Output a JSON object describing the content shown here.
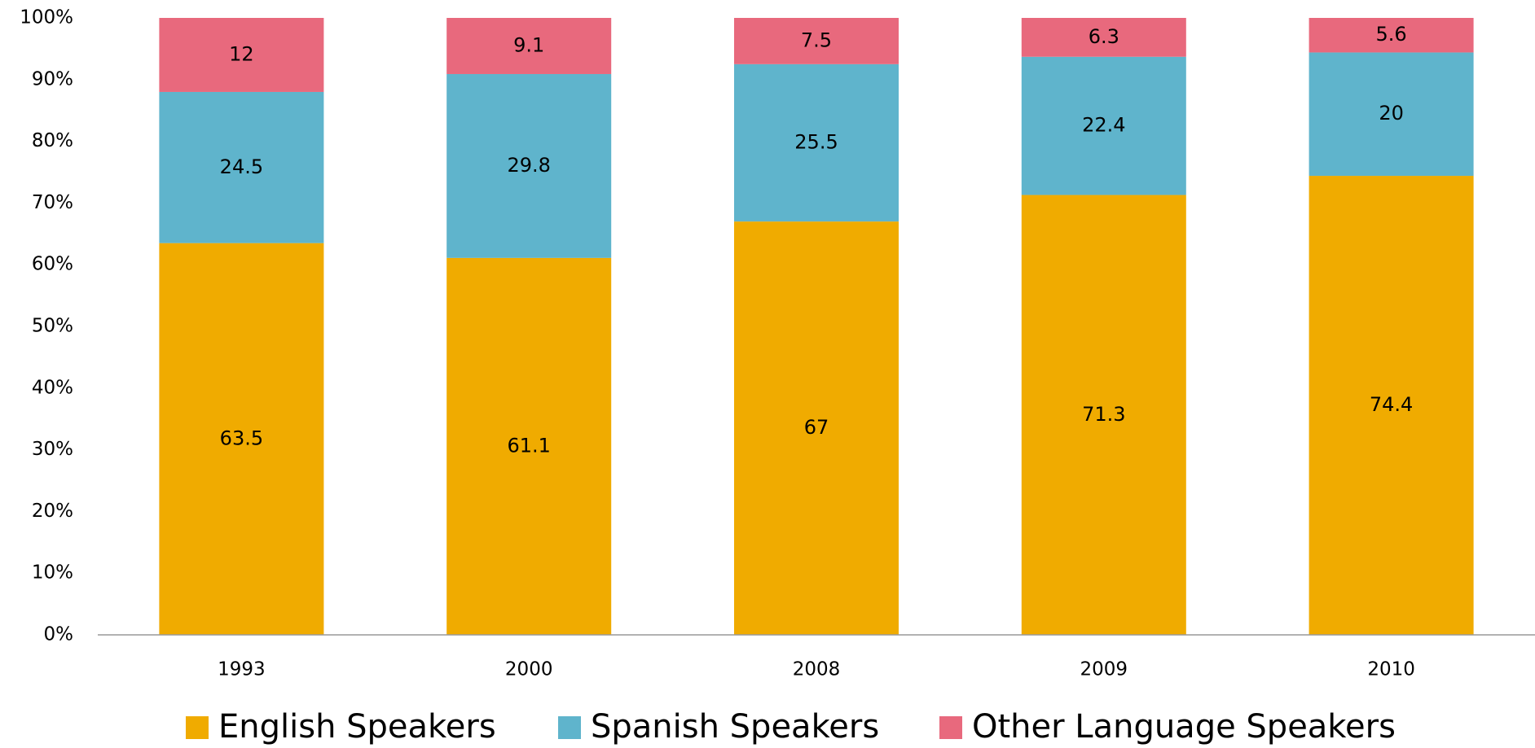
{
  "chart_data": {
    "type": "stacked_bar",
    "categories": [
      "1993",
      "2000",
      "2008",
      "2009",
      "2010"
    ],
    "series": [
      {
        "name": "English Speakers",
        "color": "#f0ab00",
        "values": [
          63.5,
          61.1,
          67,
          71.3,
          74.4
        ]
      },
      {
        "name": "Spanish Speakers",
        "color": "#5fb4cc",
        "values": [
          24.5,
          29.8,
          25.5,
          22.4,
          20
        ]
      },
      {
        "name": "Other Language Speakers",
        "color": "#e8697d",
        "values": [
          12,
          9.1,
          7.5,
          6.3,
          5.6
        ]
      }
    ],
    "ylim": [
      0,
      100
    ],
    "yticks": [
      {
        "value": 0,
        "label": "0%"
      },
      {
        "value": 10,
        "label": "10%"
      },
      {
        "value": 20,
        "label": "20%"
      },
      {
        "value": 30,
        "label": "30%"
      },
      {
        "value": 40,
        "label": "40%"
      },
      {
        "value": 50,
        "label": "50%"
      },
      {
        "value": 60,
        "label": "60%"
      },
      {
        "value": 70,
        "label": "70%"
      },
      {
        "value": 80,
        "label": "80%"
      },
      {
        "value": 90,
        "label": "90%"
      },
      {
        "value": 100,
        "label": "100%"
      }
    ],
    "grid": false,
    "legend": "bottom"
  }
}
